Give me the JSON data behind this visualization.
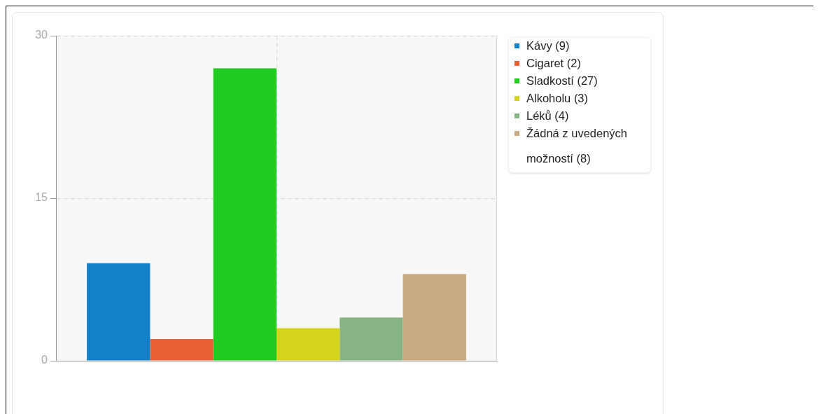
{
  "chart_data": {
    "type": "bar",
    "categories": [
      null
    ],
    "series": [
      {
        "name": "Kávy (9)",
        "color": "#1380c8",
        "values": [
          9
        ]
      },
      {
        "name": "Cigaret (2)",
        "color": "#e86035",
        "values": [
          2
        ]
      },
      {
        "name": "Sladkostí (27)",
        "color": "#20cc22",
        "values": [
          27
        ]
      },
      {
        "name": "Alkoholu (3)",
        "color": "#d4d41e",
        "values": [
          3
        ]
      },
      {
        "name": "Léků (4)",
        "color": "#87b484",
        "values": [
          4
        ]
      },
      {
        "name": "Žádná z uvedených možností (8)",
        "color": "#c8aa82",
        "values": [
          8
        ]
      }
    ],
    "ylim": [
      0,
      30
    ],
    "yticks": [
      0,
      15,
      30
    ],
    "grid": true,
    "legend": "right"
  }
}
